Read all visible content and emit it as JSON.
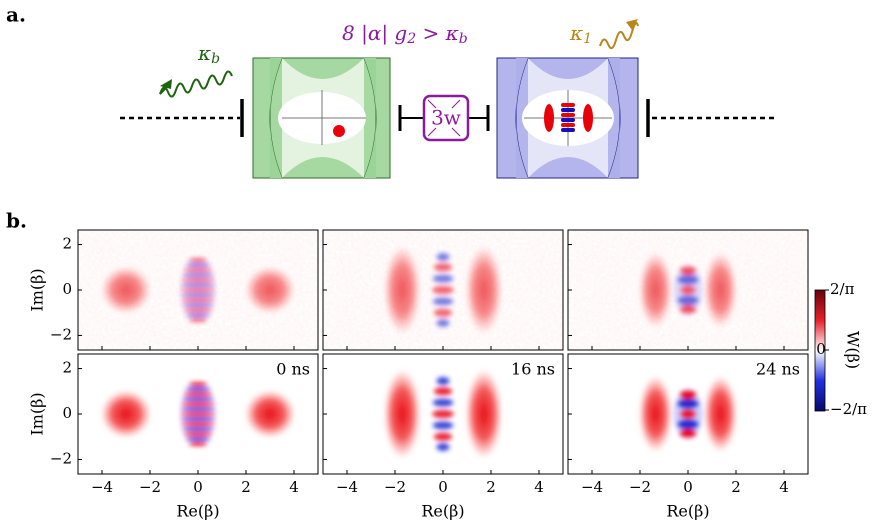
{
  "panel_a": {
    "label": "a.",
    "kappa_b": {
      "symbol": "κ",
      "subscript": "b"
    },
    "condition": [
      {
        "text": "8 |α| g"
      },
      {
        "text": "2",
        "sub": true
      },
      {
        "text": " > κ"
      },
      {
        "text": "b",
        "sub": true
      }
    ],
    "kappa_1": {
      "symbol": "κ",
      "subscript": "1"
    },
    "coupler": "3w"
  },
  "panel_b": {
    "label": "b.",
    "xlabel": "Re(β)",
    "ylabel": "Im(β)",
    "xticks": [
      {
        "value": -4,
        "label": "−4"
      },
      {
        "value": -2,
        "label": "−2"
      },
      0,
      2,
      4
    ],
    "yticks": [
      {
        "value": -2,
        "label": "−2"
      },
      0,
      2
    ],
    "xlim": [
      -5,
      5
    ],
    "ylim": [
      -2.64,
      2.64
    ],
    "times": [
      "0 ns",
      "16 ns",
      "24 ns"
    ],
    "colorbar": {
      "label": "W(β)",
      "ticks": [
        "2/π",
        "0",
        "−2/π"
      ]
    }
  }
}
